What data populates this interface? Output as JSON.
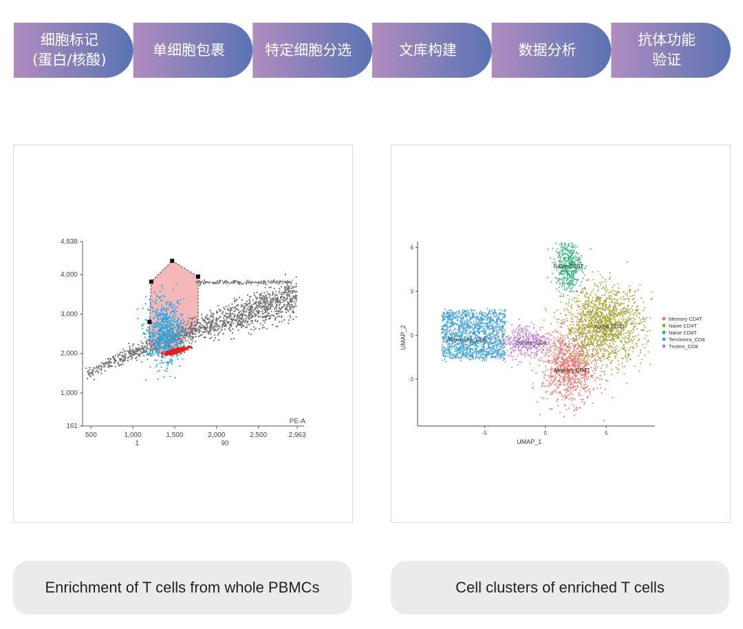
{
  "workflow": {
    "steps": [
      {
        "label": "细胞标记\n(蛋白/核酸)"
      },
      {
        "label": "单细胞包裹"
      },
      {
        "label": "特定细胞分选"
      },
      {
        "label": "文库构建"
      },
      {
        "label": "数据分析"
      },
      {
        "label": "抗体功能\n验证"
      }
    ],
    "gradient": [
      "#b08cbf",
      "#5a73b3"
    ]
  },
  "captions": {
    "left": "Enrichment of T cells from whole PBMCs",
    "right": "Cell clusters of enriched T cells"
  },
  "chart_data": [
    {
      "type": "scatter",
      "title": "",
      "xlabel": "PE-A",
      "ylabel": "",
      "xlim": [
        400,
        2963
      ],
      "ylim": [
        161,
        4838
      ],
      "x_ticks": [
        "500",
        "1,000",
        "1,500",
        "2,000",
        "2,500",
        "2,963"
      ],
      "x_tick_values": [
        500,
        1000,
        1500,
        2000,
        2500,
        2963
      ],
      "y_ticks": [
        "161",
        "1,000",
        "2,000",
        "3,000",
        "4,000",
        "4,838"
      ],
      "y_tick_values": [
        161,
        1000,
        2000,
        3000,
        4000,
        4838
      ],
      "extra_labels": [
        {
          "text": "1",
          "x": 1050
        },
        {
          "text": "90",
          "x": 2100
        }
      ],
      "gate_polygon": [
        [
          1470,
          4350
        ],
        [
          1780,
          3950
        ],
        [
          1780,
          2750
        ],
        [
          1500,
          2100
        ],
        [
          1330,
          2000
        ],
        [
          1200,
          2200
        ],
        [
          1200,
          2800
        ],
        [
          1220,
          3820
        ]
      ],
      "gate_vertices": [
        [
          1470,
          4350
        ],
        [
          1780,
          3950
        ],
        [
          1220,
          3820
        ],
        [
          1200,
          2800
        ]
      ],
      "series": [
        {
          "name": "",
          "color": "#6f6f6f",
          "shape": "band",
          "from": [
            420,
            1450
          ],
          "to": [
            2950,
            3450
          ],
          "width": 240
        },
        {
          "name": "",
          "color": "#2ba8e0",
          "shape": "cloud",
          "center": [
            1380,
            2650
          ],
          "spread": [
            110,
            650
          ]
        },
        {
          "name": "",
          "color": "#e02020",
          "shape": "ellipse",
          "center": [
            1510,
            2080
          ],
          "spread": [
            120,
            90
          ]
        }
      ],
      "colors": {
        "gate_fill": "#f4b8b8",
        "gate_line": "#444444"
      }
    },
    {
      "type": "scatter",
      "title": "",
      "xlabel": "UMAP_1",
      "ylabel": "UMAP_2",
      "xlim": [
        -10.5,
        9
      ],
      "ylim": [
        -6.2,
        6.4
      ],
      "x_ticks": [
        "-5",
        "0",
        "5"
      ],
      "x_tick_values": [
        -5,
        0,
        5
      ],
      "y_ticks": [
        "-3",
        "0",
        "3",
        "6"
      ],
      "y_tick_values": [
        -3,
        0,
        3,
        6
      ],
      "legend_position": "right",
      "series": [
        {
          "name": "Memory CD4T",
          "color": "#ef6f6a",
          "center": [
            2.2,
            -2.4
          ],
          "spread": [
            1.5,
            1.6
          ]
        },
        {
          "name": "Naive CD4T",
          "color": "#a5a02a",
          "center": [
            4.9,
            0.6
          ],
          "spread": [
            2.3,
            2.1
          ]
        },
        {
          "name": "Naive CD8T",
          "color": "#2bb07a",
          "center": [
            1.9,
            4.7
          ],
          "spread": [
            0.8,
            1.4
          ]
        },
        {
          "name": "Tem/emra_CD8",
          "color": "#3aa1d8",
          "center": [
            -5.9,
            0.0
          ],
          "spread": [
            2.1,
            1.2
          ]
        },
        {
          "name": "Tm/em_CD8",
          "color": "#bb77d6",
          "center": [
            -1.7,
            -0.5
          ],
          "spread": [
            1.2,
            0.8
          ]
        }
      ],
      "annotations": [
        {
          "text": "Naive CD8T",
          "x": 1.9,
          "y": 4.7
        },
        {
          "text": "Naive CD4T",
          "x": 5.3,
          "y": 0.6
        },
        {
          "text": "Tem/emra_CD8",
          "x": -6.4,
          "y": -0.3
        },
        {
          "text": "Tm/em_CD8",
          "x": -1.2,
          "y": -0.5
        },
        {
          "text": "Memory CD4T",
          "x": 2.2,
          "y": -2.4
        }
      ]
    }
  ]
}
